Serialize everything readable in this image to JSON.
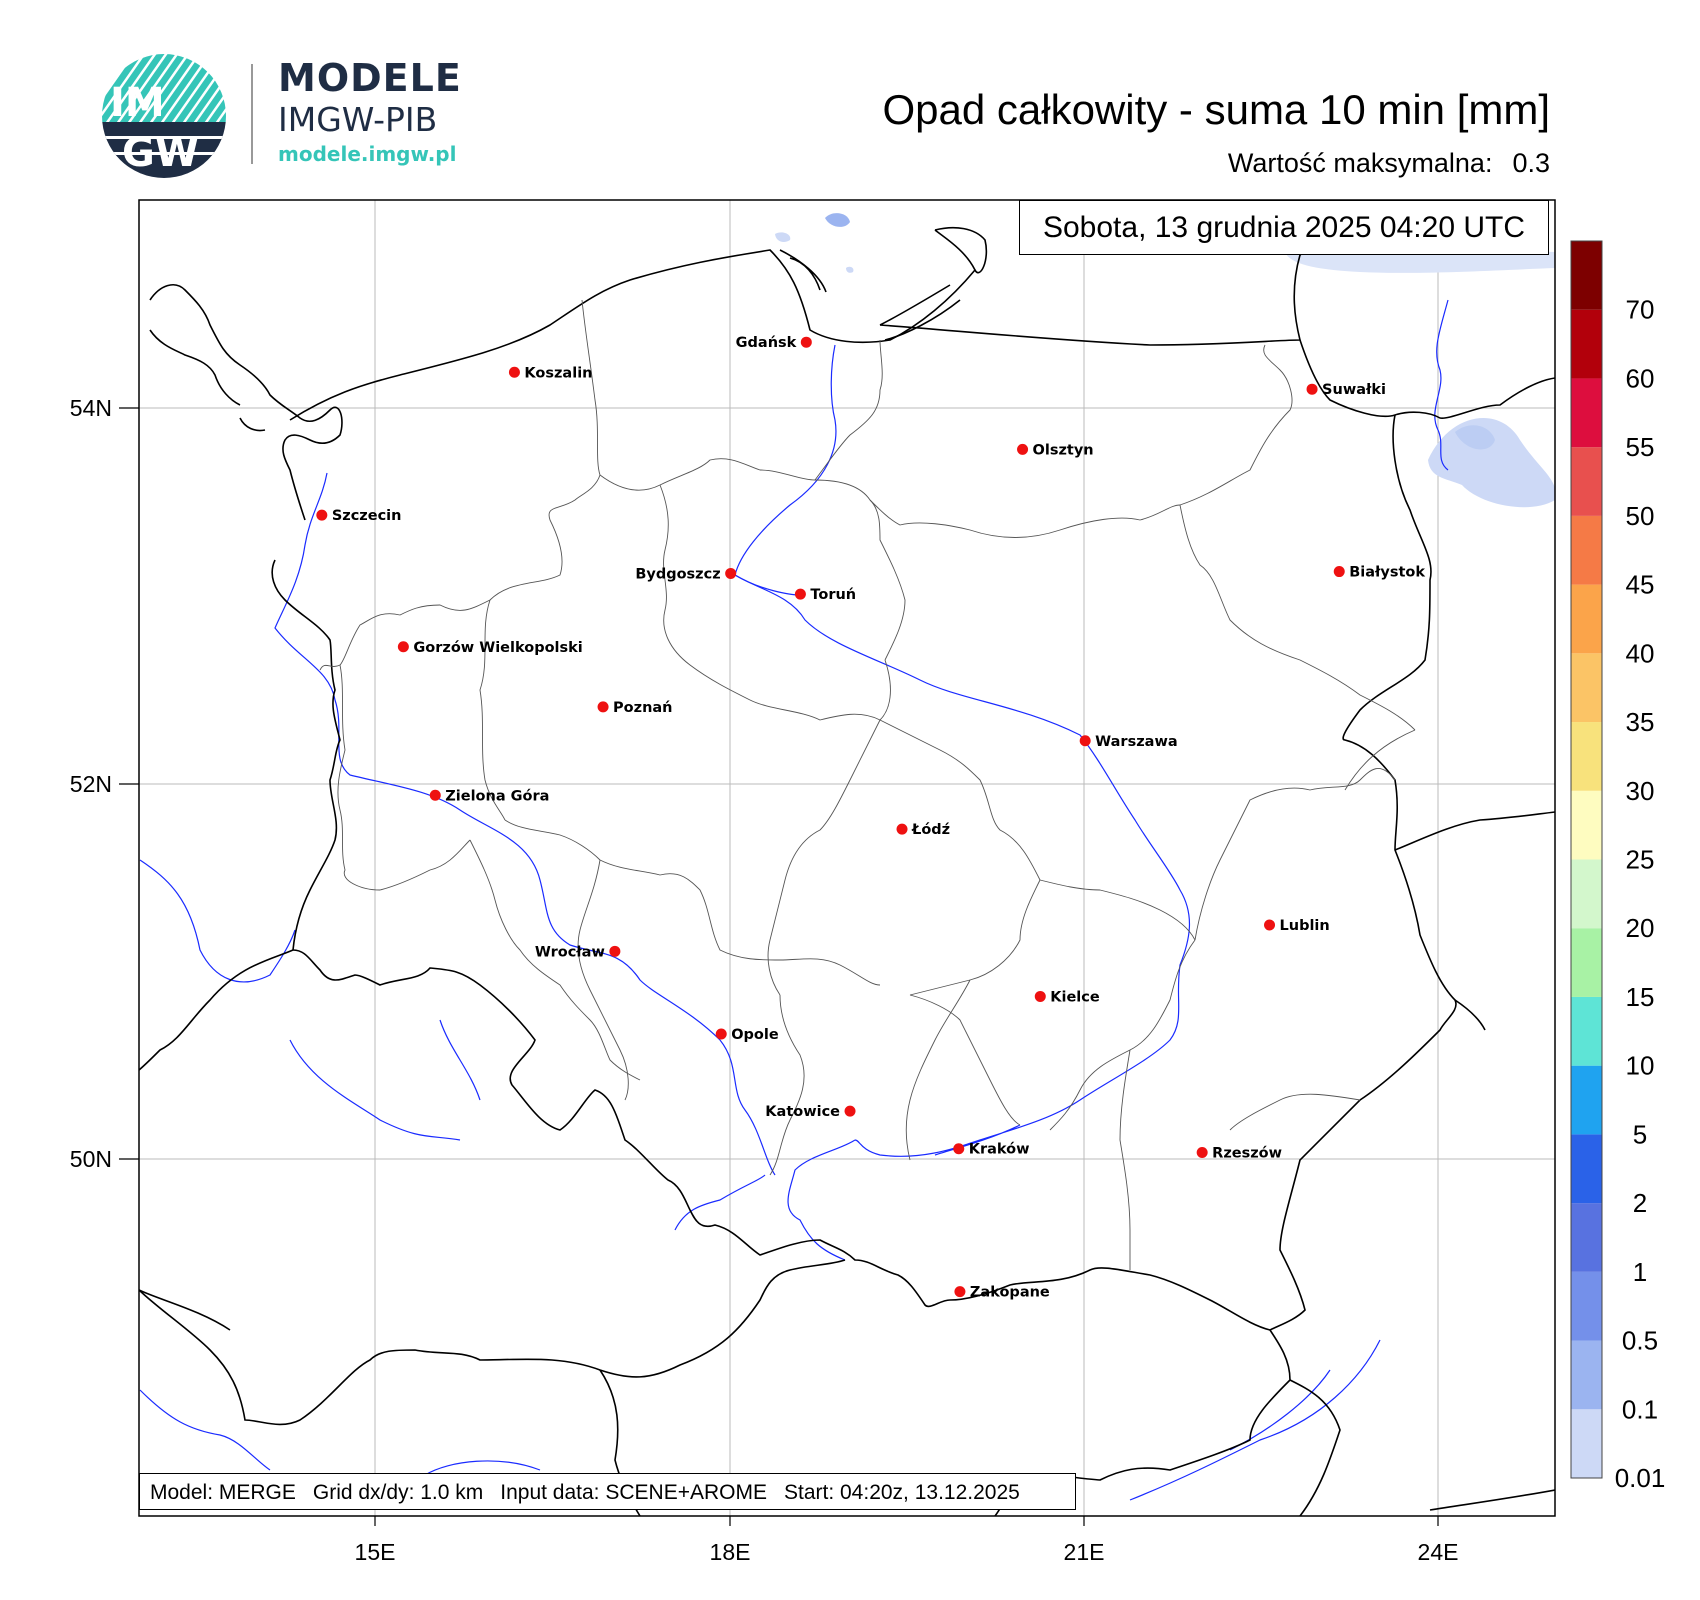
{
  "logo": {
    "badge_top": "IM",
    "badge_bottom": "GW",
    "name": "MODELE",
    "subname": "IMGW-PIB",
    "url": "modele.imgw.pl"
  },
  "title": "Opad całkowity - suma 10 min [mm]",
  "max_label": "Wartość maksymalna:",
  "max_value": "0.3",
  "date": "Sobota, 13 grudnia 2025 04:20 UTC",
  "footer": {
    "model": "Model: MERGE",
    "grid": "Grid dx/dy: 1.0 km",
    "input": "Input data: SCENE+AROME",
    "start": "Start: 04:20z, 13.12.2025"
  },
  "axes": {
    "lon_ticks": [
      "15E",
      "18E",
      "21E",
      "24E"
    ],
    "lat_ticks": [
      "54N",
      "52N",
      "50N"
    ]
  },
  "colorbar": {
    "labels": [
      "0.01",
      "0.1",
      "0.5",
      "1",
      "2",
      "5",
      "10",
      "15",
      "20",
      "25",
      "30",
      "35",
      "40",
      "45",
      "50",
      "55",
      "60",
      "70"
    ],
    "colors": [
      "#cdd9f6",
      "#9bb4f0",
      "#7490ea",
      "#5872e0",
      "#2a62e8",
      "#1fa3f0",
      "#5ee4d6",
      "#a8f2a5",
      "#d3f7cc",
      "#fefcc0",
      "#f8e27c",
      "#fbc466",
      "#fba44a",
      "#f57a46",
      "#e8504e",
      "#dd0e3e",
      "#b2000b",
      "#7d0000"
    ]
  },
  "cities": [
    {
      "name": "Gdańsk",
      "lon": 18.65,
      "lat": 54.35,
      "anchor": "left"
    },
    {
      "name": "Koszalin",
      "lon": 16.18,
      "lat": 54.19,
      "anchor": "right"
    },
    {
      "name": "Suwałki",
      "lon": 22.93,
      "lat": 54.1,
      "anchor": "right"
    },
    {
      "name": "Olsztyn",
      "lon": 20.48,
      "lat": 53.78,
      "anchor": "right"
    },
    {
      "name": "Szczecin",
      "lon": 14.55,
      "lat": 53.43,
      "anchor": "right"
    },
    {
      "name": "Białystok",
      "lon": 23.16,
      "lat": 53.13,
      "anchor": "right"
    },
    {
      "name": "Bydgoszcz",
      "lon": 18.01,
      "lat": 53.12,
      "anchor": "left"
    },
    {
      "name": "Toruń",
      "lon": 18.6,
      "lat": 53.01,
      "anchor": "right"
    },
    {
      "name": "Gorzów Wielkopolski",
      "lon": 15.24,
      "lat": 52.73,
      "anchor": "right"
    },
    {
      "name": "Poznań",
      "lon": 16.93,
      "lat": 52.41,
      "anchor": "right"
    },
    {
      "name": "Warszawa",
      "lon": 21.01,
      "lat": 52.23,
      "anchor": "right"
    },
    {
      "name": "Zielona Góra",
      "lon": 15.51,
      "lat": 51.94,
      "anchor": "right"
    },
    {
      "name": "Łódź",
      "lon": 19.46,
      "lat": 51.76,
      "anchor": "right"
    },
    {
      "name": "Lublin",
      "lon": 22.57,
      "lat": 51.25,
      "anchor": "right"
    },
    {
      "name": "Wrocław",
      "lon": 17.03,
      "lat": 51.11,
      "anchor": "left"
    },
    {
      "name": "Kielce",
      "lon": 20.63,
      "lat": 50.87,
      "anchor": "right"
    },
    {
      "name": "Opole",
      "lon": 17.93,
      "lat": 50.67,
      "anchor": "right"
    },
    {
      "name": "Katowice",
      "lon": 19.02,
      "lat": 50.26,
      "anchor": "left"
    },
    {
      "name": "Rzeszów",
      "lon": 22.0,
      "lat": 50.04,
      "anchor": "right"
    },
    {
      "name": "Kraków",
      "lon": 19.94,
      "lat": 50.06,
      "anchor": "right"
    },
    {
      "name": "Zakopane",
      "lon": 19.95,
      "lat": 49.3,
      "anchor": "right"
    }
  ]
}
